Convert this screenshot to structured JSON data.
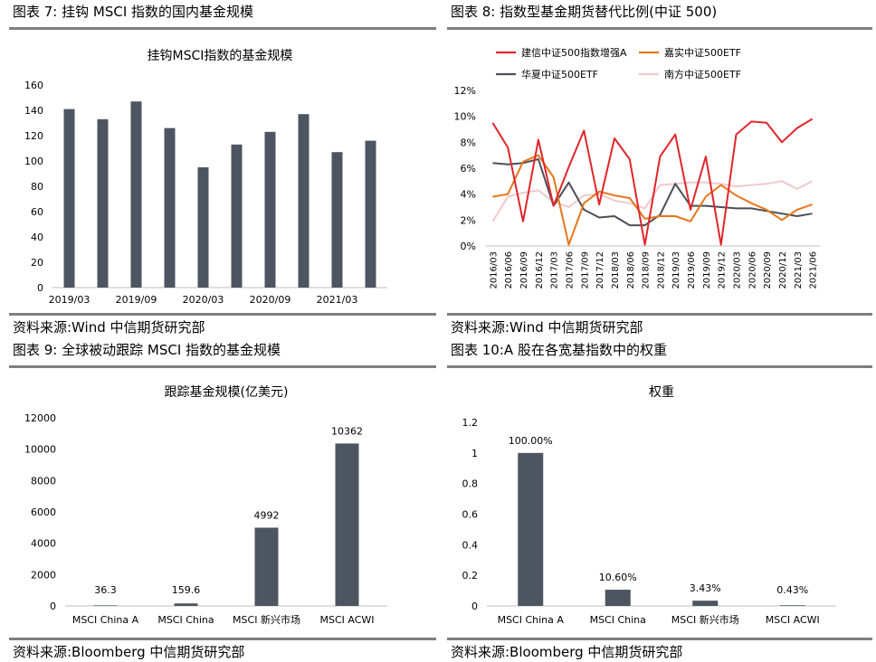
{
  "figures": [
    {
      "title": "图表 7:  挂钩 MSCI 指数的国内基金规模",
      "source": "资料来源:Wind  中信期货研究部"
    },
    {
      "title": "图表 8:  指数型基金期货替代比例(中证 500)",
      "source": "资料来源:Wind  中信期货研究部"
    },
    {
      "title": "图表 9:  全球被动跟踪 MSCI 指数的基金规模",
      "source": "资料来源:Bloomberg  中信期货研究部"
    },
    {
      "title": "图表 10:A 股在各宽基指数中的权重",
      "source": "资料来源:Bloomberg  中信期货研究部"
    }
  ],
  "chart_data": [
    {
      "type": "bar",
      "title": "挂钩MSCI指数的基金规模",
      "color": "#4d5561",
      "ylim": [
        0,
        160
      ],
      "yticks": [
        "0",
        "20",
        "40",
        "60",
        "80",
        "100",
        "120",
        "140",
        "160"
      ],
      "values": [
        141,
        133,
        147,
        126,
        95,
        113,
        123,
        137,
        107,
        116
      ],
      "xtick_labels": [
        "2019/03",
        "2019/09",
        "2020/03",
        "2020/09",
        "2021/03"
      ]
    },
    {
      "type": "line",
      "ylim": [
        0,
        12
      ],
      "yticks": [
        "0%",
        "2%",
        "4%",
        "6%",
        "8%",
        "10%",
        "12%"
      ],
      "x": [
        "2016/03",
        "2016/06",
        "2016/09",
        "2016/12",
        "2017/03",
        "2017/06",
        "2017/09",
        "2017/12",
        "2018/03",
        "2018/06",
        "2018/09",
        "2018/12",
        "2019/03",
        "2019/06",
        "2019/09",
        "2019/12",
        "2020/03",
        "2020/06",
        "2020/09",
        "2020/12",
        "2021/03",
        "2021/06"
      ],
      "series": [
        {
          "name": "建信中证500指数增强A",
          "color": "#e0262b",
          "values": [
            9.5,
            7.6,
            1.9,
            8.2,
            3.1,
            6.1,
            8.9,
            3.2,
            8.3,
            6.7,
            0.1,
            6.9,
            8.6,
            2.8,
            6.9,
            0.1,
            8.6,
            9.6,
            9.5,
            8.0,
            9.1,
            9.8
          ]
        },
        {
          "name": "嘉实中证500ETF",
          "color": "#e8761c",
          "values": [
            3.8,
            4.0,
            6.5,
            7.0,
            5.3,
            0.1,
            3.3,
            4.2,
            3.9,
            3.7,
            2.1,
            2.3,
            2.3,
            1.9,
            3.8,
            4.7,
            3.9,
            3.3,
            2.8,
            2.0,
            2.8,
            3.2
          ]
        },
        {
          "name": "华夏中证500ETF",
          "color": "#4a4f57",
          "values": [
            6.4,
            6.3,
            6.4,
            6.7,
            3.1,
            4.9,
            2.8,
            2.2,
            2.3,
            1.6,
            1.6,
            2.4,
            4.8,
            3.1,
            3.1,
            3.0,
            2.9,
            2.9,
            2.7,
            2.5,
            2.3,
            2.5
          ]
        },
        {
          "name": "南方中证500ETF",
          "color": "#f2c8cc",
          "values": [
            1.9,
            3.8,
            4.1,
            4.3,
            3.4,
            3.0,
            3.9,
            4.0,
            3.5,
            3.3,
            2.9,
            4.7,
            4.8,
            4.9,
            4.9,
            4.8,
            4.6,
            4.7,
            4.8,
            5.0,
            4.4,
            5.0
          ]
        }
      ]
    },
    {
      "type": "bar",
      "title": "跟踪基金规模(亿美元)",
      "color": "#4d5561",
      "ylim": [
        0,
        12000
      ],
      "yticks": [
        "0",
        "2000",
        "4000",
        "6000",
        "8000",
        "10000",
        "12000"
      ],
      "categories": [
        "MSCI China A",
        "MSCI China",
        "MSCI 新兴市场",
        "MSCI ACWI"
      ],
      "values": [
        36.3,
        159.6,
        4992,
        10362
      ],
      "data_labels": [
        "36.3",
        "159.6",
        "4992",
        "10362"
      ]
    },
    {
      "type": "bar",
      "title": "权重",
      "color": "#4d5561",
      "ylim": [
        0,
        1.2
      ],
      "yticks": [
        "0",
        "0.2",
        "0.4",
        "0.6",
        "0.8",
        "1",
        "1.2"
      ],
      "categories": [
        "MSCI China A",
        "MSCI China",
        "MSCI 新兴市场",
        "MSCI ACWI"
      ],
      "values": [
        1.0,
        0.106,
        0.0343,
        0.0043
      ],
      "data_labels": [
        "100.00%",
        "10.60%",
        "3.43%",
        "0.43%"
      ]
    }
  ]
}
